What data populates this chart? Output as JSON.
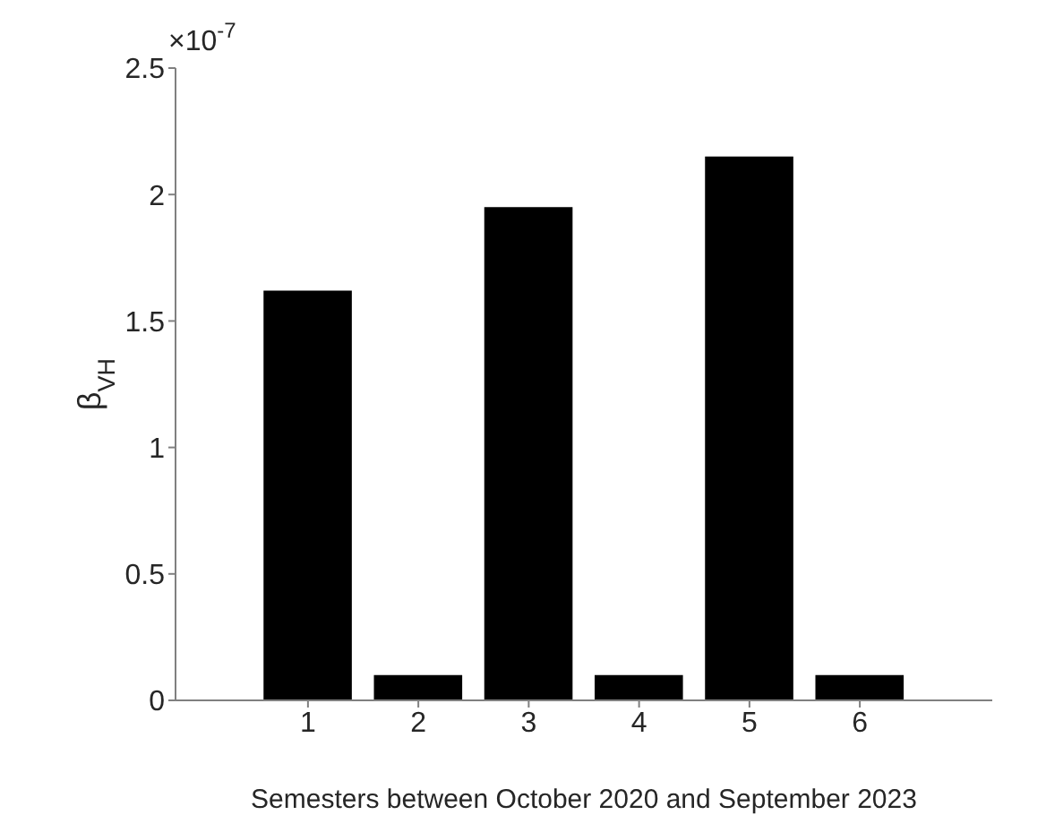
{
  "chart_data": {
    "type": "bar",
    "xlabel": "Semesters between October 2020 and September 2023",
    "ylabel": "β$_{VH}$",
    "annotations": [
      "×10$^{-7}$"
    ],
    "x": [
      1,
      2,
      3,
      4,
      5,
      6
    ],
    "values": [
      1.62,
      0.1,
      1.95,
      0.1,
      2.15,
      0.1
    ],
    "color": "#000000",
    "xlim": [
      -0.2,
      7.2
    ],
    "xticks": [
      1,
      2,
      3,
      4,
      5,
      6
    ],
    "ylim": [
      0,
      2.5
    ],
    "yticks": [
      0,
      0.5,
      1,
      1.5,
      2,
      2.5
    ],
    "grid": false,
    "legend": false
  }
}
